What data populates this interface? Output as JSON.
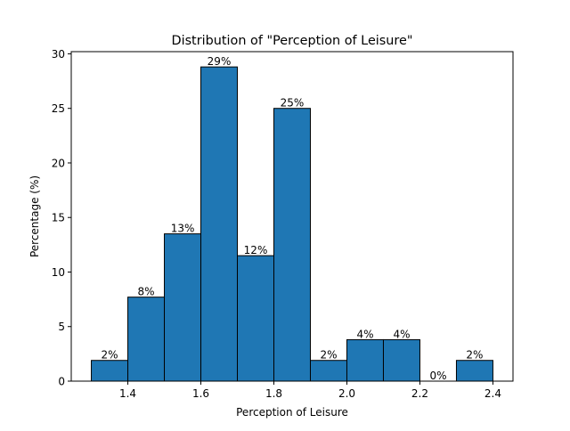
{
  "chart_data": {
    "type": "bar",
    "title": "Distribution of \"Perception of Leisure\"",
    "xlabel": "Perception of Leisure",
    "ylabel": "Percentage (%)",
    "bin_edges": [
      1.3,
      1.4,
      1.5,
      1.6,
      1.7,
      1.8,
      1.9,
      2.0,
      2.1,
      2.2,
      2.3,
      2.4
    ],
    "values": [
      1.9,
      7.7,
      13.5,
      28.8,
      11.5,
      25.0,
      1.9,
      3.8,
      3.8,
      0.0,
      1.9
    ],
    "labels": [
      "2%",
      "8%",
      "13%",
      "29%",
      "12%",
      "25%",
      "2%",
      "4%",
      "4%",
      "0%",
      "2%"
    ],
    "xlim": [
      1.245,
      2.455
    ],
    "ylim": [
      0,
      30.2
    ],
    "xticks": [
      1.4,
      1.6,
      1.8,
      2.0,
      2.2,
      2.4
    ],
    "xtick_labels": [
      "1.4",
      "1.6",
      "1.8",
      "2.0",
      "2.2",
      "2.4"
    ],
    "yticks": [
      0,
      5,
      10,
      15,
      20,
      25,
      30
    ],
    "ytick_labels": [
      "0",
      "5",
      "10",
      "15",
      "20",
      "25",
      "30"
    ],
    "grid": false,
    "colors": {
      "bar_fill": "#1f77b4",
      "bar_edge": "#000000",
      "axis": "#000000"
    }
  }
}
